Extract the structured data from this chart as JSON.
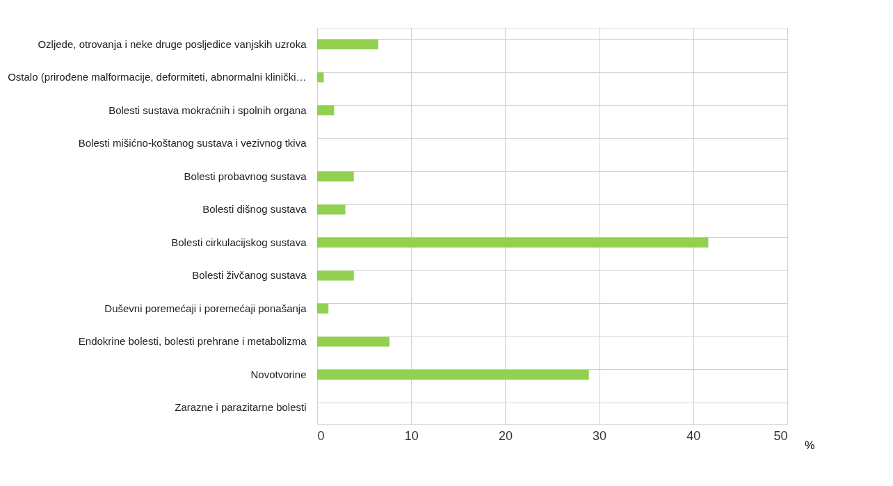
{
  "chart_data": {
    "type": "bar",
    "orientation": "horizontal",
    "xlabel": "%",
    "categories": [
      "Ozljede, otrovanja i neke druge posljedice vanjskih uzroka",
      "Ostalo (prirođene malformacije, deformiteti, abnormalni klinički…",
      "Bolesti sustava mokraćnih i spolnih organa",
      "Bolesti mišićno-koštanog sustava i vezivnog tkiva",
      "Bolesti probavnog sustava",
      "Bolesti dišnog sustava",
      "Bolesti cirkulacijskog sustava",
      "Bolesti živčanog sustava",
      "Duševni poremećaji i poremećaji ponašanja",
      "Endokrine bolesti, bolesti prehrane i metabolizma",
      "Novotvorine",
      "Zarazne i parazitarne bolesti"
    ],
    "values": [
      6.5,
      0.7,
      1.8,
      0,
      3.9,
      3.0,
      41.6,
      3.9,
      1.2,
      7.7,
      28.9,
      0
    ],
    "color": "#92d050",
    "xlim": [
      0,
      50
    ],
    "xticks": [
      0,
      10,
      20,
      30,
      40,
      50
    ],
    "grid": true
  }
}
